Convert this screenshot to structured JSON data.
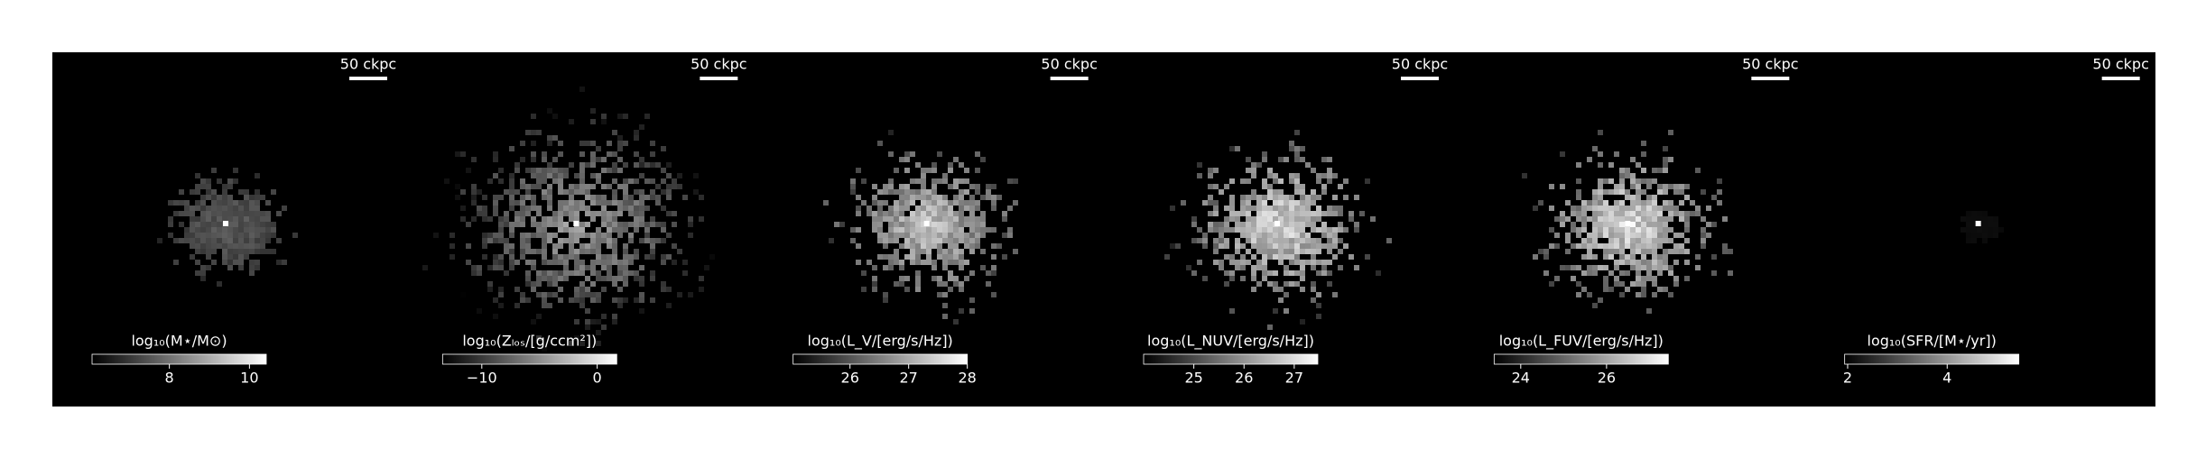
{
  "panels": [
    {
      "scale_label": "50 ckpc",
      "colorbar": {
        "label": "log₁₀(M⋆/M⊙)",
        "lim": [
          6.07,
          10.42
        ],
        "ticks": [
          8,
          10
        ]
      }
    },
    {
      "scale_label": "50 ckpc",
      "colorbar": {
        "label": "log₁₀(Zₗₒₛ/[g/ccm²])",
        "lim": [
          -13.4,
          1.7
        ],
        "ticks": [
          {
            "value": -10,
            "label": "−10"
          },
          0
        ]
      }
    },
    {
      "scale_label": "50 ckpc",
      "colorbar": {
        "label": "log₁₀(L_V/[erg/s/Hz])",
        "lim": [
          25.03,
          28
        ],
        "ticks": [
          26,
          27,
          28
        ]
      }
    },
    {
      "scale_label": "50 ckpc",
      "colorbar": {
        "label": "log₁₀(L_NUV/[erg/s/Hz])",
        "lim": [
          24.0,
          27.47
        ],
        "ticks": [
          25,
          26,
          27
        ]
      }
    },
    {
      "scale_label": "50 ckpc",
      "colorbar": {
        "label": "log₁₀(L_FUV/[erg/s/Hz])",
        "lim": [
          23.38,
          27.44
        ],
        "ticks": [
          24,
          26
        ]
      }
    },
    {
      "scale_label": "50 ckpc",
      "colorbar": {
        "label": "log₁₀(SFR/[M⋆/yr])",
        "lim": [
          1.94,
          5.44
        ],
        "ticks": [
          2,
          4
        ]
      }
    }
  ]
}
